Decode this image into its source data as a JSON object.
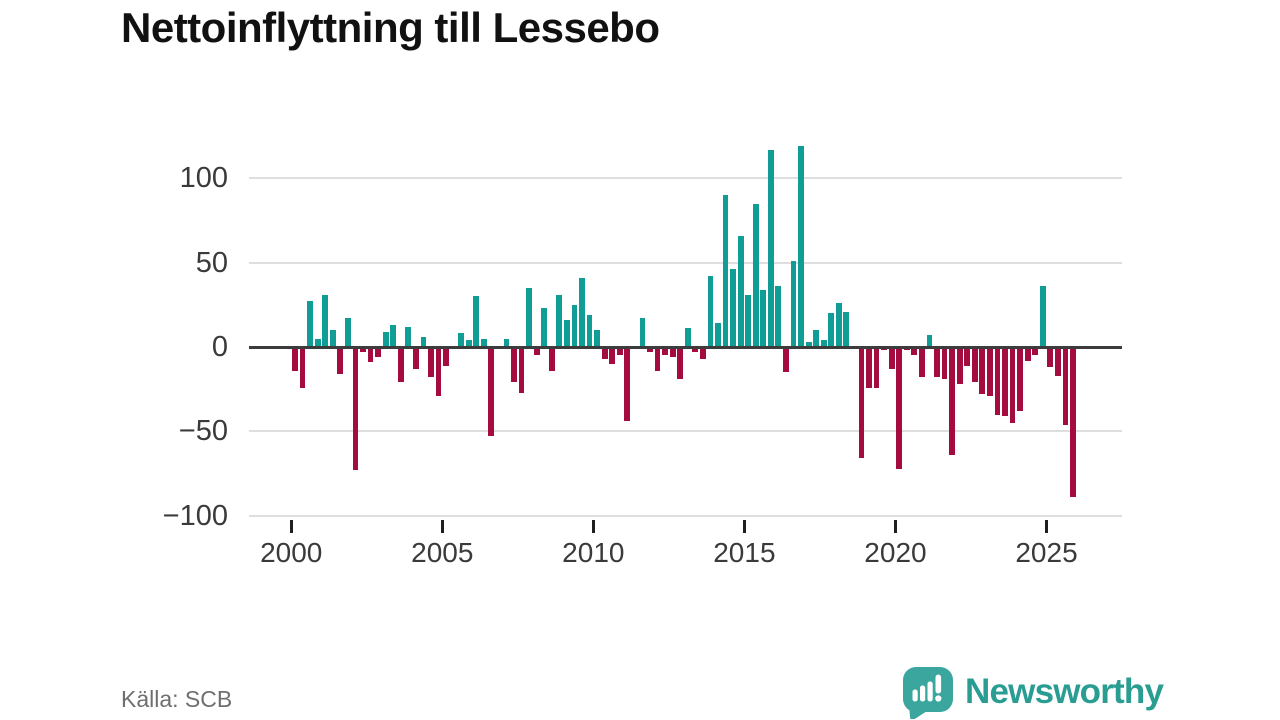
{
  "title": "Nettoinflyttning till Lessebo",
  "source": "Källa: SCB",
  "branding": {
    "logo_text": "Newsworthy"
  },
  "colors": {
    "positive": "#109d96",
    "negative": "#a40b3f",
    "axis": "#3c3c3c",
    "grid": "#dedede",
    "tick": "#1f1f1f",
    "label": "#3a3a3a",
    "title": "#111111",
    "source_text": "#6f6f6f",
    "brand_teal": "#2a9d93",
    "brand_icon": "#3ba69d"
  },
  "chart_data": {
    "type": "bar",
    "title": "Nettoinflyttning till Lessebo",
    "source": "Källa: SCB",
    "frequency": "quarterly",
    "start": "2000-Q1",
    "end": "2025-Q4",
    "ylim": [
      -100,
      120
    ],
    "grid": true,
    "legend": false,
    "y_ticks": [
      {
        "value": 100,
        "label": "100"
      },
      {
        "value": 50,
        "label": "50"
      },
      {
        "value": 0,
        "label": "0"
      },
      {
        "value": -50,
        "label": "−50"
      },
      {
        "value": -100,
        "label": "−100"
      }
    ],
    "x_ticks": [
      {
        "label": "2000",
        "quarter_index": 0
      },
      {
        "label": "2005",
        "quarter_index": 20
      },
      {
        "label": "2010",
        "quarter_index": 40
      },
      {
        "label": "2015",
        "quarter_index": 60
      },
      {
        "label": "2020",
        "quarter_index": 80
      },
      {
        "label": "2025",
        "quarter_index": 100
      }
    ],
    "values": [
      -14,
      -24,
      27,
      5,
      31,
      10,
      -16,
      17,
      -73,
      -3,
      -9,
      -6,
      9,
      13,
      -21,
      12,
      -13,
      6,
      -18,
      -29,
      -11,
      0,
      8,
      4,
      30,
      5,
      -53,
      0,
      5,
      -21,
      -27,
      35,
      -5,
      23,
      -14,
      31,
      16,
      25,
      41,
      19,
      10,
      -7,
      -10,
      -5,
      -44,
      0,
      17,
      -3,
      -14,
      -5,
      -6,
      -19,
      11,
      -3,
      -7,
      42,
      14,
      90,
      46,
      66,
      31,
      85,
      34,
      117,
      36,
      -15,
      51,
      119,
      3,
      10,
      4,
      20,
      26,
      21,
      0,
      -66,
      -24,
      -24,
      -2,
      -13,
      -72,
      -2,
      -5,
      -18,
      7,
      -18,
      -19,
      -64,
      -22,
      -11,
      -21,
      -28,
      -29,
      -40,
      -41,
      -45,
      -38,
      -8,
      -5,
      36,
      -12,
      -17,
      -46,
      -89
    ]
  }
}
